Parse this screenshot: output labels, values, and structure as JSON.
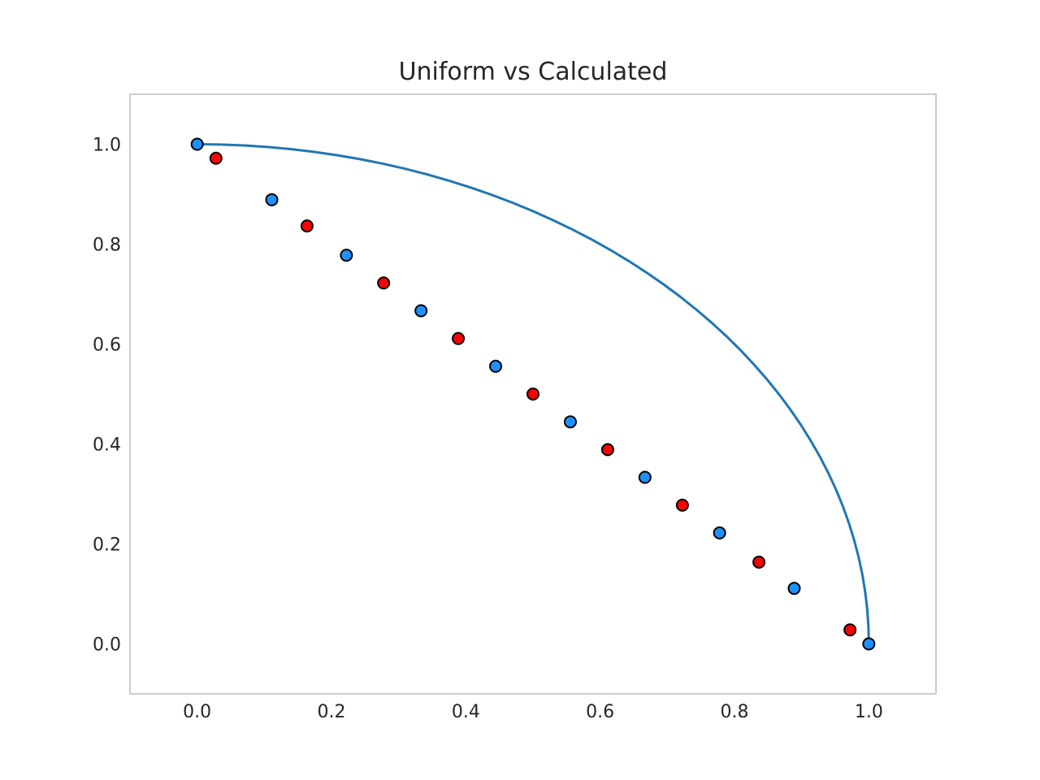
{
  "chart_data": {
    "type": "scatter",
    "title": "Uniform vs Calculated",
    "xlabel": "",
    "ylabel": "",
    "xlim": [
      -0.1,
      1.1
    ],
    "ylim": [
      -0.1,
      1.1
    ],
    "x_ticks": [
      "0.0",
      "0.2",
      "0.4",
      "0.6",
      "0.8",
      "1.0"
    ],
    "y_ticks": [
      "0.0",
      "0.2",
      "0.4",
      "0.6",
      "0.8",
      "1.0"
    ],
    "grid": false,
    "legend": "none",
    "frame_color": "#cccccc",
    "series": [
      {
        "type": "line",
        "color": "#1f77b4",
        "points": [
          [
            0.0,
            1.0
          ],
          [
            0.0349,
            0.9994
          ],
          [
            0.0698,
            0.9976
          ],
          [
            0.1045,
            0.9945
          ],
          [
            0.1392,
            0.9903
          ],
          [
            0.1736,
            0.9848
          ],
          [
            0.2079,
            0.9781
          ],
          [
            0.2419,
            0.9703
          ],
          [
            0.2756,
            0.9613
          ],
          [
            0.309,
            0.9511
          ],
          [
            0.342,
            0.9397
          ],
          [
            0.3746,
            0.9272
          ],
          [
            0.4067,
            0.9135
          ],
          [
            0.4384,
            0.8988
          ],
          [
            0.4695,
            0.8829
          ],
          [
            0.5,
            0.866
          ],
          [
            0.5299,
            0.848
          ],
          [
            0.5592,
            0.829
          ],
          [
            0.5878,
            0.809
          ],
          [
            0.6157,
            0.788
          ],
          [
            0.6428,
            0.766
          ],
          [
            0.6691,
            0.7431
          ],
          [
            0.6947,
            0.7193
          ],
          [
            0.7193,
            0.6947
          ],
          [
            0.7431,
            0.6691
          ],
          [
            0.766,
            0.6428
          ],
          [
            0.788,
            0.6157
          ],
          [
            0.809,
            0.5878
          ],
          [
            0.829,
            0.5592
          ],
          [
            0.848,
            0.5299
          ],
          [
            0.866,
            0.5
          ],
          [
            0.8829,
            0.4695
          ],
          [
            0.8988,
            0.4384
          ],
          [
            0.9135,
            0.4067
          ],
          [
            0.9272,
            0.3746
          ],
          [
            0.9397,
            0.342
          ],
          [
            0.9511,
            0.309
          ],
          [
            0.9613,
            0.2756
          ],
          [
            0.9703,
            0.2419
          ],
          [
            0.9781,
            0.2079
          ],
          [
            0.9848,
            0.1736
          ],
          [
            0.9903,
            0.1392
          ],
          [
            0.9945,
            0.1045
          ],
          [
            0.9976,
            0.0698
          ],
          [
            0.9994,
            0.0349
          ],
          [
            1.0,
            0.0
          ]
        ]
      },
      {
        "type": "scatter",
        "color": "#ff0000",
        "edge_color": "#000000",
        "points": [
          [
            0.028,
            0.972
          ],
          [
            0.1636,
            0.8364
          ],
          [
            0.2776,
            0.7224
          ],
          [
            0.3888,
            0.6112
          ],
          [
            0.5,
            0.5
          ],
          [
            0.6112,
            0.3888
          ],
          [
            0.7224,
            0.2776
          ],
          [
            0.8364,
            0.1636
          ],
          [
            0.972,
            0.028
          ]
        ]
      },
      {
        "type": "scatter",
        "color": "#1e90ff",
        "edge_color": "#000000",
        "points": [
          [
            0.0,
            1.0
          ],
          [
            0.1111,
            0.8889
          ],
          [
            0.2222,
            0.7778
          ],
          [
            0.3333,
            0.6667
          ],
          [
            0.4444,
            0.5556
          ],
          [
            0.5556,
            0.4444
          ],
          [
            0.6667,
            0.3333
          ],
          [
            0.7778,
            0.2222
          ],
          [
            0.8889,
            0.1111
          ],
          [
            1.0,
            0.0
          ]
        ]
      }
    ]
  }
}
